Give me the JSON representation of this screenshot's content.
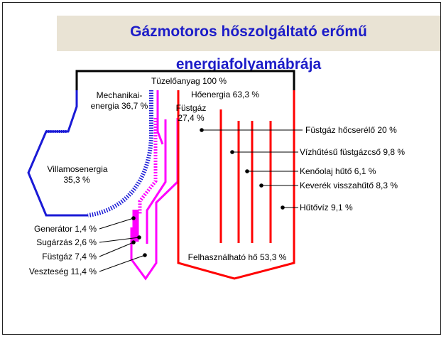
{
  "title": "Gázmotoros hőszolgáltató erőmű energiafolyamábrája",
  "colors": {
    "title_text": "#1c1cc8",
    "title_bg": "#e9e3d4",
    "fuel": "#000000",
    "electric": "#1a1ad6",
    "mechanical": "#ff00ff",
    "heat": "#ff0000",
    "text": "#000000"
  },
  "labels": {
    "fuel": "Tüzelőanyag 100 %",
    "mechanical_1": "Mechanikai-",
    "mechanical_2": "energia 36,7 %",
    "heat": "Hőenergia 63,3 %",
    "fluegas_1": "Füstgáz",
    "fluegas_2": "27,4 %",
    "electric_1": "Villamosenergia",
    "electric_2": "35,3 %",
    "fluegas_hx": "Füstgáz hőcserélő 20 %",
    "water_cooled": "Vízhűtésű füstgázcső 9,8 %",
    "oil_cooler": "Kenőolaj hűtő 6,1 %",
    "mix_recooler": "Keverék visszahűtő 8,3 %",
    "cooling_water": "Hűtővíz 9,1 %",
    "generator": "Generátor 1,4 %",
    "radiation": "Sugárzás 2,6 %",
    "fluegas_loss": "Füstgáz 7,4 %",
    "loss": "Veszteség 11,4 %",
    "usable_heat": "Felhasználható hő 53,3 %"
  }
}
